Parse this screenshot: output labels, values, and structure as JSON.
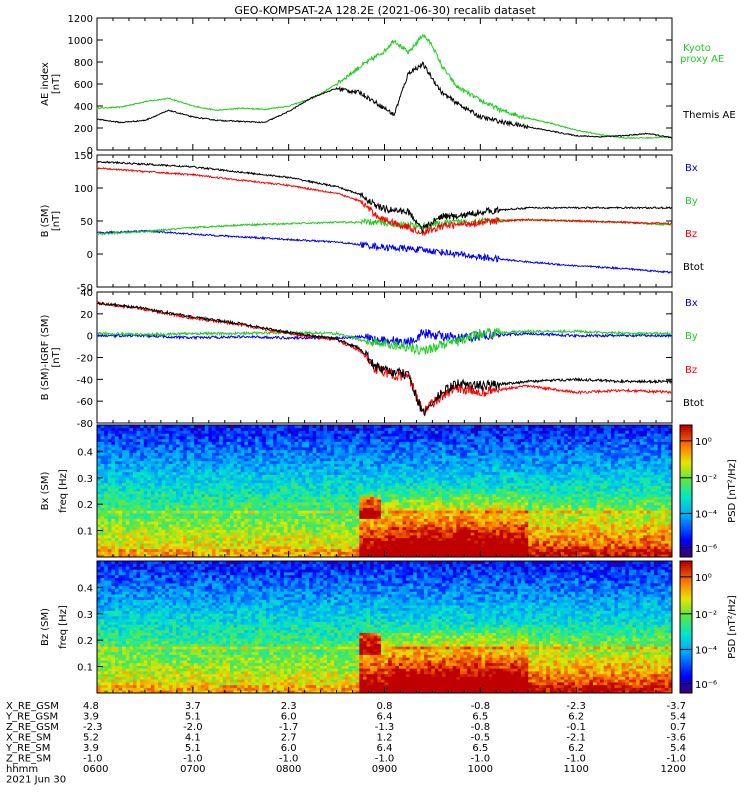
{
  "title": "GEO-KOMPSAT-2A 128.2E (2021-06-30) recalib dataset",
  "colors": {
    "black": "#000000",
    "green": "#22cc22",
    "red": "#ff0000",
    "blue": "#0000ff",
    "kyoto": "#22cc22"
  },
  "chart_data": [
    {
      "type": "line",
      "panel": "ae",
      "ylabel": "AE index [nT]",
      "ylim": [
        0,
        1200
      ],
      "yticks": [
        "0",
        "200",
        "400",
        "600",
        "800",
        "1000",
        "1200"
      ],
      "x_hours": [
        6.0,
        6.25,
        6.5,
        6.75,
        7.0,
        7.25,
        7.5,
        7.75,
        8.0,
        8.25,
        8.5,
        8.75,
        9.0,
        9.1,
        9.25,
        9.4,
        9.5,
        9.6,
        9.75,
        10.0,
        10.25,
        10.5,
        10.75,
        11.0,
        11.25,
        11.5,
        11.75,
        12.0
      ],
      "series": [
        {
          "name": "Kyoto proxy AE",
          "color": "#22cc22",
          "values": [
            380,
            390,
            440,
            470,
            400,
            360,
            380,
            370,
            400,
            470,
            600,
            760,
            900,
            1000,
            880,
            1050,
            950,
            760,
            580,
            450,
            350,
            290,
            240,
            180,
            140,
            110,
            110,
            120
          ]
        },
        {
          "name": "Themis AE",
          "color": "#000000",
          "values": [
            280,
            250,
            270,
            360,
            300,
            270,
            260,
            250,
            350,
            480,
            560,
            520,
            380,
            320,
            700,
            780,
            650,
            520,
            430,
            300,
            250,
            210,
            170,
            130,
            120,
            130,
            150,
            110
          ]
        }
      ]
    },
    {
      "type": "line",
      "panel": "b_sm",
      "ylabel": "B (SM) [nT]",
      "ylim": [
        -50,
        150
      ],
      "yticks": [
        "-50",
        "0",
        "50",
        "100",
        "150"
      ],
      "x_hours": [
        6.0,
        6.5,
        7.0,
        7.5,
        8.0,
        8.5,
        8.75,
        8.9,
        9.0,
        9.25,
        9.4,
        9.6,
        9.75,
        10.0,
        10.5,
        11.0,
        11.5,
        12.0
      ],
      "series": [
        {
          "name": "Bx",
          "color": "#0000ff",
          "values": [
            32,
            35,
            30,
            26,
            22,
            18,
            14,
            12,
            10,
            8,
            6,
            3,
            0,
            -5,
            -12,
            -18,
            -22,
            -28
          ]
        },
        {
          "name": "By",
          "color": "#22cc22",
          "values": [
            30,
            34,
            40,
            44,
            46,
            48,
            48,
            48,
            47,
            44,
            42,
            46,
            48,
            50,
            52,
            50,
            48,
            44
          ]
        },
        {
          "name": "Bz",
          "color": "#ff0000",
          "values": [
            130,
            125,
            120,
            112,
            104,
            92,
            80,
            60,
            52,
            40,
            32,
            42,
            44,
            48,
            52,
            50,
            48,
            46
          ]
        },
        {
          "name": "Btot",
          "color": "#000000",
          "values": [
            140,
            136,
            132,
            124,
            116,
            102,
            90,
            74,
            68,
            64,
            38,
            58,
            56,
            64,
            70,
            70,
            70,
            70
          ]
        }
      ]
    },
    {
      "type": "line",
      "panel": "b_minus_igrf",
      "ylabel": "B (SM)-IGRF (SM) [nT]",
      "ylim": [
        -80,
        40
      ],
      "yticks": [
        "-80",
        "-60",
        "-40",
        "-20",
        "0",
        "20",
        "40"
      ],
      "x_hours": [
        6.0,
        6.5,
        7.0,
        7.5,
        8.0,
        8.5,
        8.75,
        8.9,
        9.0,
        9.25,
        9.4,
        9.6,
        9.75,
        10.0,
        10.5,
        11.0,
        11.5,
        12.0
      ],
      "series": [
        {
          "name": "Bx",
          "color": "#0000ff",
          "values": [
            0,
            0,
            -2,
            -1,
            -2,
            -2,
            -1,
            -4,
            -4,
            -6,
            2,
            0,
            -3,
            0,
            2,
            0,
            0,
            0
          ]
        },
        {
          "name": "By",
          "color": "#22cc22",
          "values": [
            2,
            1,
            2,
            2,
            3,
            2,
            -4,
            -6,
            -8,
            -10,
            -14,
            -8,
            -6,
            2,
            4,
            4,
            2,
            2
          ]
        },
        {
          "name": "Bz",
          "color": "#ff0000",
          "values": [
            30,
            24,
            16,
            10,
            2,
            -4,
            -14,
            -30,
            -34,
            -38,
            -68,
            -56,
            -48,
            -52,
            -46,
            -52,
            -50,
            -52
          ]
        },
        {
          "name": "Btot",
          "color": "#000000",
          "values": [
            30,
            25,
            17,
            11,
            3,
            -3,
            -12,
            -28,
            -32,
            -36,
            -72,
            -52,
            -44,
            -46,
            -42,
            -40,
            -42,
            -42
          ]
        }
      ]
    },
    {
      "type": "heatmap",
      "panel": "bx_psd",
      "ylabel": "Bx (SM) freq [Hz]",
      "yticks": [
        "0.1",
        "0.2",
        "0.3",
        "0.4"
      ],
      "colorbar_label": "PSD [nT²/Hz]",
      "colorbar_ticks": [
        "10⁰",
        "10⁻²",
        "10⁻⁴",
        "10⁻⁶"
      ]
    },
    {
      "type": "heatmap",
      "panel": "bz_psd",
      "ylabel": "Bz (SM) freq [Hz]",
      "yticks": [
        "0.1",
        "0.2",
        "0.3",
        "0.4"
      ],
      "colorbar_label": "PSD [nT²/Hz]",
      "colorbar_ticks": [
        "10⁰",
        "10⁻²",
        "10⁻⁴",
        "10⁻⁶"
      ]
    }
  ],
  "legend": {
    "ae": [
      "Kyoto proxy AE",
      "Themis AE"
    ],
    "b": [
      "Bx",
      "By",
      "Bz",
      "Btot"
    ]
  },
  "orbit_table": {
    "row_labels": [
      "X_RE_GSM",
      "Y_RE_GSM",
      "Z_RE_GSM",
      "X_RE_SM",
      "Y_RE_SM",
      "Z_RE_SM",
      "hhmm"
    ],
    "columns": [
      [
        "4.8",
        "3.9",
        "-2.3",
        "5.2",
        "3.9",
        "-1.0",
        "0600"
      ],
      [
        "3.7",
        "5.1",
        "-2.0",
        "4.1",
        "5.1",
        "-1.0",
        "0700"
      ],
      [
        "2.3",
        "6.0",
        "-1.7",
        "2.7",
        "6.0",
        "-1.0",
        "0800"
      ],
      [
        "0.8",
        "6.4",
        "-1.3",
        "1.2",
        "6.4",
        "-1.0",
        "0900"
      ],
      [
        "-0.8",
        "6.5",
        "-0.8",
        "-0.5",
        "6.5",
        "-1.0",
        "1000"
      ],
      [
        "-2.3",
        "6.2",
        "-0.1",
        "-2.1",
        "6.2",
        "-1.0",
        "1100"
      ],
      [
        "-3.7",
        "5.4",
        "0.7",
        "-3.6",
        "5.4",
        "-1.0",
        "1200"
      ]
    ],
    "date": "2021 Jun 30"
  }
}
